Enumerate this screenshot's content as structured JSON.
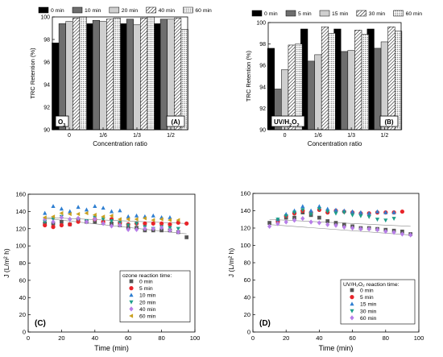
{
  "chart_data": [
    {
      "type": "bar",
      "panel_label": "(A)",
      "condition_label": "O3",
      "xlabel": "Concentration ratio",
      "ylabel": "TRC Retention (%)",
      "categories": [
        "0",
        "1/6",
        "1/3",
        "1/2"
      ],
      "ylim": [
        90,
        100
      ],
      "yticks": [
        90,
        92,
        94,
        96,
        98,
        100
      ],
      "legend_position": "top",
      "series": [
        {
          "name": "0 min",
          "fill": "#000000",
          "values": [
            97.7,
            99.4,
            99.4,
            99.4
          ]
        },
        {
          "name": "10 min",
          "fill": "#6e6e6e",
          "values": [
            99.4,
            99.7,
            99.8,
            99.8
          ]
        },
        {
          "name": "20 min",
          "fill": "#cfcfcf",
          "values": [
            99.6,
            99.6,
            99.3,
            99.8
          ]
        },
        {
          "name": "40 min",
          "fill": "hatch",
          "values": [
            99.9,
            99.8,
            99.9,
            99.9
          ]
        },
        {
          "name": "60 min",
          "fill": "dots",
          "values": [
            100.0,
            99.9,
            100.0,
            98.9
          ]
        }
      ]
    },
    {
      "type": "bar",
      "panel_label": "(B)",
      "condition_label": "UV/H2O2",
      "xlabel": "Concentration ratio",
      "ylabel": "TRC Retention (%)",
      "categories": [
        "0",
        "1/6",
        "1/3",
        "1/2"
      ],
      "ylim": [
        90,
        100
      ],
      "yticks": [
        90,
        92,
        94,
        96,
        98,
        100
      ],
      "legend_position": "top",
      "series": [
        {
          "name": "0 min",
          "fill": "#000000",
          "values": [
            97.6,
            99.4,
            99.4,
            99.4
          ]
        },
        {
          "name": "5 min",
          "fill": "#6e6e6e",
          "values": [
            93.8,
            96.4,
            97.3,
            97.6
          ]
        },
        {
          "name": "15 min",
          "fill": "#cfcfcf",
          "values": [
            95.6,
            97.0,
            97.4,
            98.2
          ]
        },
        {
          "name": "30 min",
          "fill": "hatch",
          "values": [
            97.9,
            99.6,
            99.3,
            99.6
          ]
        },
        {
          "name": "60 min",
          "fill": "dots",
          "values": [
            98.0,
            99.0,
            98.9,
            99.2
          ]
        }
      ]
    },
    {
      "type": "scatter",
      "panel_label": "(C)",
      "xlabel": "Time (min)",
      "ylabel": "J (L/m² h)",
      "xlim": [
        0,
        100
      ],
      "ylim": [
        0,
        160
      ],
      "xticks": [
        0,
        20,
        40,
        60,
        80,
        100
      ],
      "yticks": [
        0,
        20,
        40,
        60,
        80,
        100,
        120,
        140,
        160
      ],
      "legend_title": "ozone reaction time:",
      "legend_position": "bottom-right",
      "reference_lines": [
        {
          "x": [
            10,
            95
          ],
          "y": [
            133,
            126
          ]
        },
        {
          "x": [
            10,
            95
          ],
          "y": [
            132,
            114
          ]
        }
      ],
      "series": [
        {
          "name": "0 min",
          "marker": "square",
          "color": "#555555",
          "x": [
            10,
            15,
            20,
            25,
            30,
            35,
            40,
            45,
            50,
            55,
            60,
            65,
            70,
            75,
            80,
            85,
            90,
            95
          ],
          "y": [
            126,
            126,
            128,
            125,
            130,
            128,
            128,
            127,
            126,
            124,
            121,
            121,
            118,
            118,
            118,
            118,
            116,
            110
          ]
        },
        {
          "name": "5 min",
          "marker": "circle",
          "color": "#e8242a",
          "x": [
            10,
            15,
            20,
            25,
            30,
            40,
            45,
            50,
            55,
            60,
            65,
            70,
            75,
            80,
            85,
            90,
            95
          ],
          "y": [
            124,
            122,
            124,
            125,
            128,
            131,
            128,
            131,
            127,
            125,
            126,
            126,
            126,
            126,
            125,
            127,
            126
          ]
        },
        {
          "name": "10 min",
          "marker": "triangle-up",
          "color": "#2f7fd1",
          "x": [
            10,
            15,
            20,
            25,
            30,
            35,
            40,
            45,
            50,
            55,
            60,
            65,
            70,
            75,
            80,
            85
          ],
          "y": [
            138,
            146,
            143,
            140,
            145,
            142,
            146,
            144,
            140,
            141,
            134,
            135,
            134,
            135,
            133,
            133
          ]
        },
        {
          "name": "20 min",
          "marker": "triangle-down",
          "color": "#1e9e8a",
          "x": [
            10,
            15,
            20,
            25,
            30,
            35,
            40,
            45,
            50,
            55,
            60,
            65,
            70,
            75,
            80,
            85,
            90
          ],
          "y": [
            128,
            131,
            134,
            130,
            131,
            129,
            133,
            131,
            129,
            127,
            124,
            126,
            122,
            120,
            122,
            121,
            120
          ]
        },
        {
          "name": "40 min",
          "marker": "diamond",
          "color": "#b77ee8",
          "x": [
            10,
            15,
            20,
            25,
            30,
            35,
            40,
            45,
            50,
            55,
            60,
            65,
            70,
            75,
            80,
            85,
            90
          ],
          "y": [
            131,
            128,
            133,
            131,
            132,
            128,
            131,
            126,
            123,
            124,
            119,
            119,
            120,
            120,
            121,
            118,
            116
          ]
        },
        {
          "name": "60 min",
          "marker": "triangle-left",
          "color": "#c9a021",
          "x": [
            10,
            15,
            20,
            25,
            30,
            35,
            40,
            45,
            50,
            55,
            60,
            65,
            70,
            75,
            80,
            85,
            90
          ],
          "y": [
            133,
            134,
            138,
            137,
            137,
            138,
            136,
            134,
            135,
            131,
            131,
            131,
            132,
            130,
            131,
            130,
            130
          ]
        }
      ]
    },
    {
      "type": "scatter",
      "panel_label": "(D)",
      "xlabel": "Time (min)",
      "ylabel": "J (L/m² h)",
      "xlim": [
        0,
        100
      ],
      "ylim": [
        0,
        160
      ],
      "xticks": [
        0,
        20,
        40,
        60,
        80,
        100
      ],
      "yticks": [
        0,
        20,
        40,
        60,
        80,
        100,
        120,
        140,
        160
      ],
      "legend_title": "UV/H₂O₂ reaction time:",
      "legend_position": "bottom-right",
      "reference_lines": [
        {
          "x": [
            10,
            95
          ],
          "y": [
            130,
            122
          ]
        },
        {
          "x": [
            10,
            95
          ],
          "y": [
            124,
            112
          ]
        }
      ],
      "series": [
        {
          "name": "0 min",
          "marker": "square",
          "color": "#555555",
          "x": [
            10,
            15,
            20,
            25,
            30,
            35,
            40,
            45,
            50,
            55,
            60,
            65,
            70,
            75,
            80,
            85,
            90,
            95
          ],
          "y": [
            126,
            128,
            132,
            132,
            138,
            135,
            132,
            128,
            126,
            124,
            122,
            120,
            120,
            119,
            118,
            117,
            116,
            113
          ]
        },
        {
          "name": "5 min",
          "marker": "circle",
          "color": "#e8242a",
          "x": [
            15,
            20,
            25,
            30,
            35,
            40,
            45,
            50,
            55,
            60,
            65,
            70,
            75,
            80,
            85,
            90
          ],
          "y": [
            128,
            134,
            137,
            140,
            138,
            141,
            138,
            140,
            139,
            138,
            137,
            137,
            138,
            138,
            138,
            139
          ]
        },
        {
          "name": "15 min",
          "marker": "triangle-up",
          "color": "#2f7fd1",
          "x": [
            15,
            20,
            25,
            30,
            35,
            40,
            45,
            50,
            55,
            60,
            65,
            70,
            75,
            80,
            85
          ],
          "y": [
            130,
            136,
            140,
            145,
            140,
            145,
            142,
            141,
            140,
            139,
            138,
            137,
            139,
            138,
            138
          ]
        },
        {
          "name": "30 min",
          "marker": "triangle-down",
          "color": "#1e9e8a",
          "x": [
            15,
            20,
            25,
            30,
            35,
            40,
            45,
            50,
            55,
            60,
            65,
            70,
            75,
            80,
            85
          ],
          "y": [
            130,
            134,
            138,
            141,
            136,
            142,
            139,
            137,
            138,
            135,
            134,
            133,
            130,
            129,
            131
          ]
        },
        {
          "name": "60 min",
          "marker": "diamond",
          "color": "#b77ee8",
          "x": [
            10,
            15,
            20,
            25,
            30,
            35,
            40,
            45,
            50,
            55,
            60,
            65,
            70,
            75,
            80,
            85,
            90,
            95
          ],
          "y": [
            122,
            125,
            127,
            129,
            131,
            127,
            126,
            124,
            123,
            121,
            120,
            119,
            119,
            118,
            116,
            115,
            113,
            112
          ]
        }
      ]
    }
  ]
}
